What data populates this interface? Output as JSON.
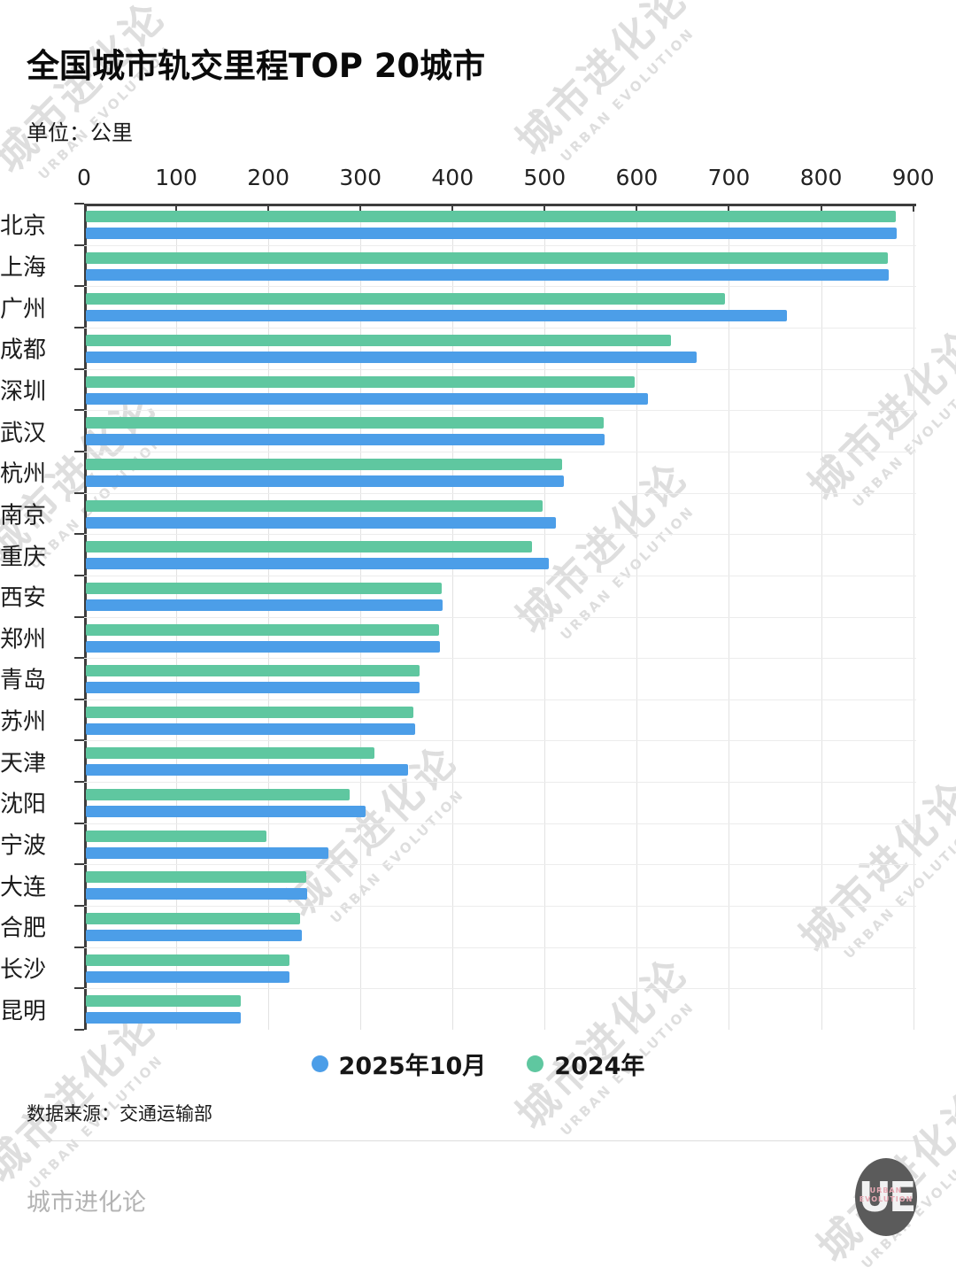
{
  "title": "全国城市轨交里程TOP 20城市",
  "subtitle": "单位：公里",
  "watermark": {
    "text": "城市进化论",
    "subtext": "URBAN EVOLUTION"
  },
  "legend": {
    "items": [
      {
        "label": "2025年10月",
        "color": "#4C9EE8"
      },
      {
        "label": "2024年",
        "color": "#5FC7A0"
      }
    ]
  },
  "source": "数据来源：交通运输部",
  "brand": "城市进化论",
  "logo": {
    "text": "UE",
    "caption_line1": "URBAN",
    "caption_line2": "EVOLUTION"
  },
  "chart_data": {
    "type": "bar",
    "orientation": "horizontal",
    "title": "全国城市轨交里程TOP 20城市",
    "xlabel": "公里",
    "ylabel": "",
    "xlim": [
      0,
      900
    ],
    "xticks": [
      0,
      100,
      200,
      300,
      400,
      500,
      600,
      700,
      800,
      900
    ],
    "grid": true,
    "legend_position": "bottom",
    "categories": [
      "北京",
      "上海",
      "广州",
      "成都",
      "深圳",
      "武汉",
      "杭州",
      "南京",
      "重庆",
      "西安",
      "郑州",
      "青岛",
      "苏州",
      "天津",
      "沈阳",
      "宁波",
      "大连",
      "合肥",
      "长沙",
      "昆明"
    ],
    "series": [
      {
        "name": "2025年10月",
        "color": "#4C9EE8",
        "values": [
          880,
          872,
          761,
          663,
          610,
          563,
          519,
          510,
          503,
          387,
          384,
          362,
          357,
          350,
          304,
          263,
          240,
          234,
          221,
          168
        ]
      },
      {
        "name": "2024年",
        "color": "#5FC7A0",
        "values": [
          879,
          871,
          694,
          635,
          596,
          562,
          517,
          496,
          484,
          386,
          383,
          362,
          356,
          313,
          286,
          196,
          239,
          233,
          221,
          168
        ]
      }
    ]
  }
}
